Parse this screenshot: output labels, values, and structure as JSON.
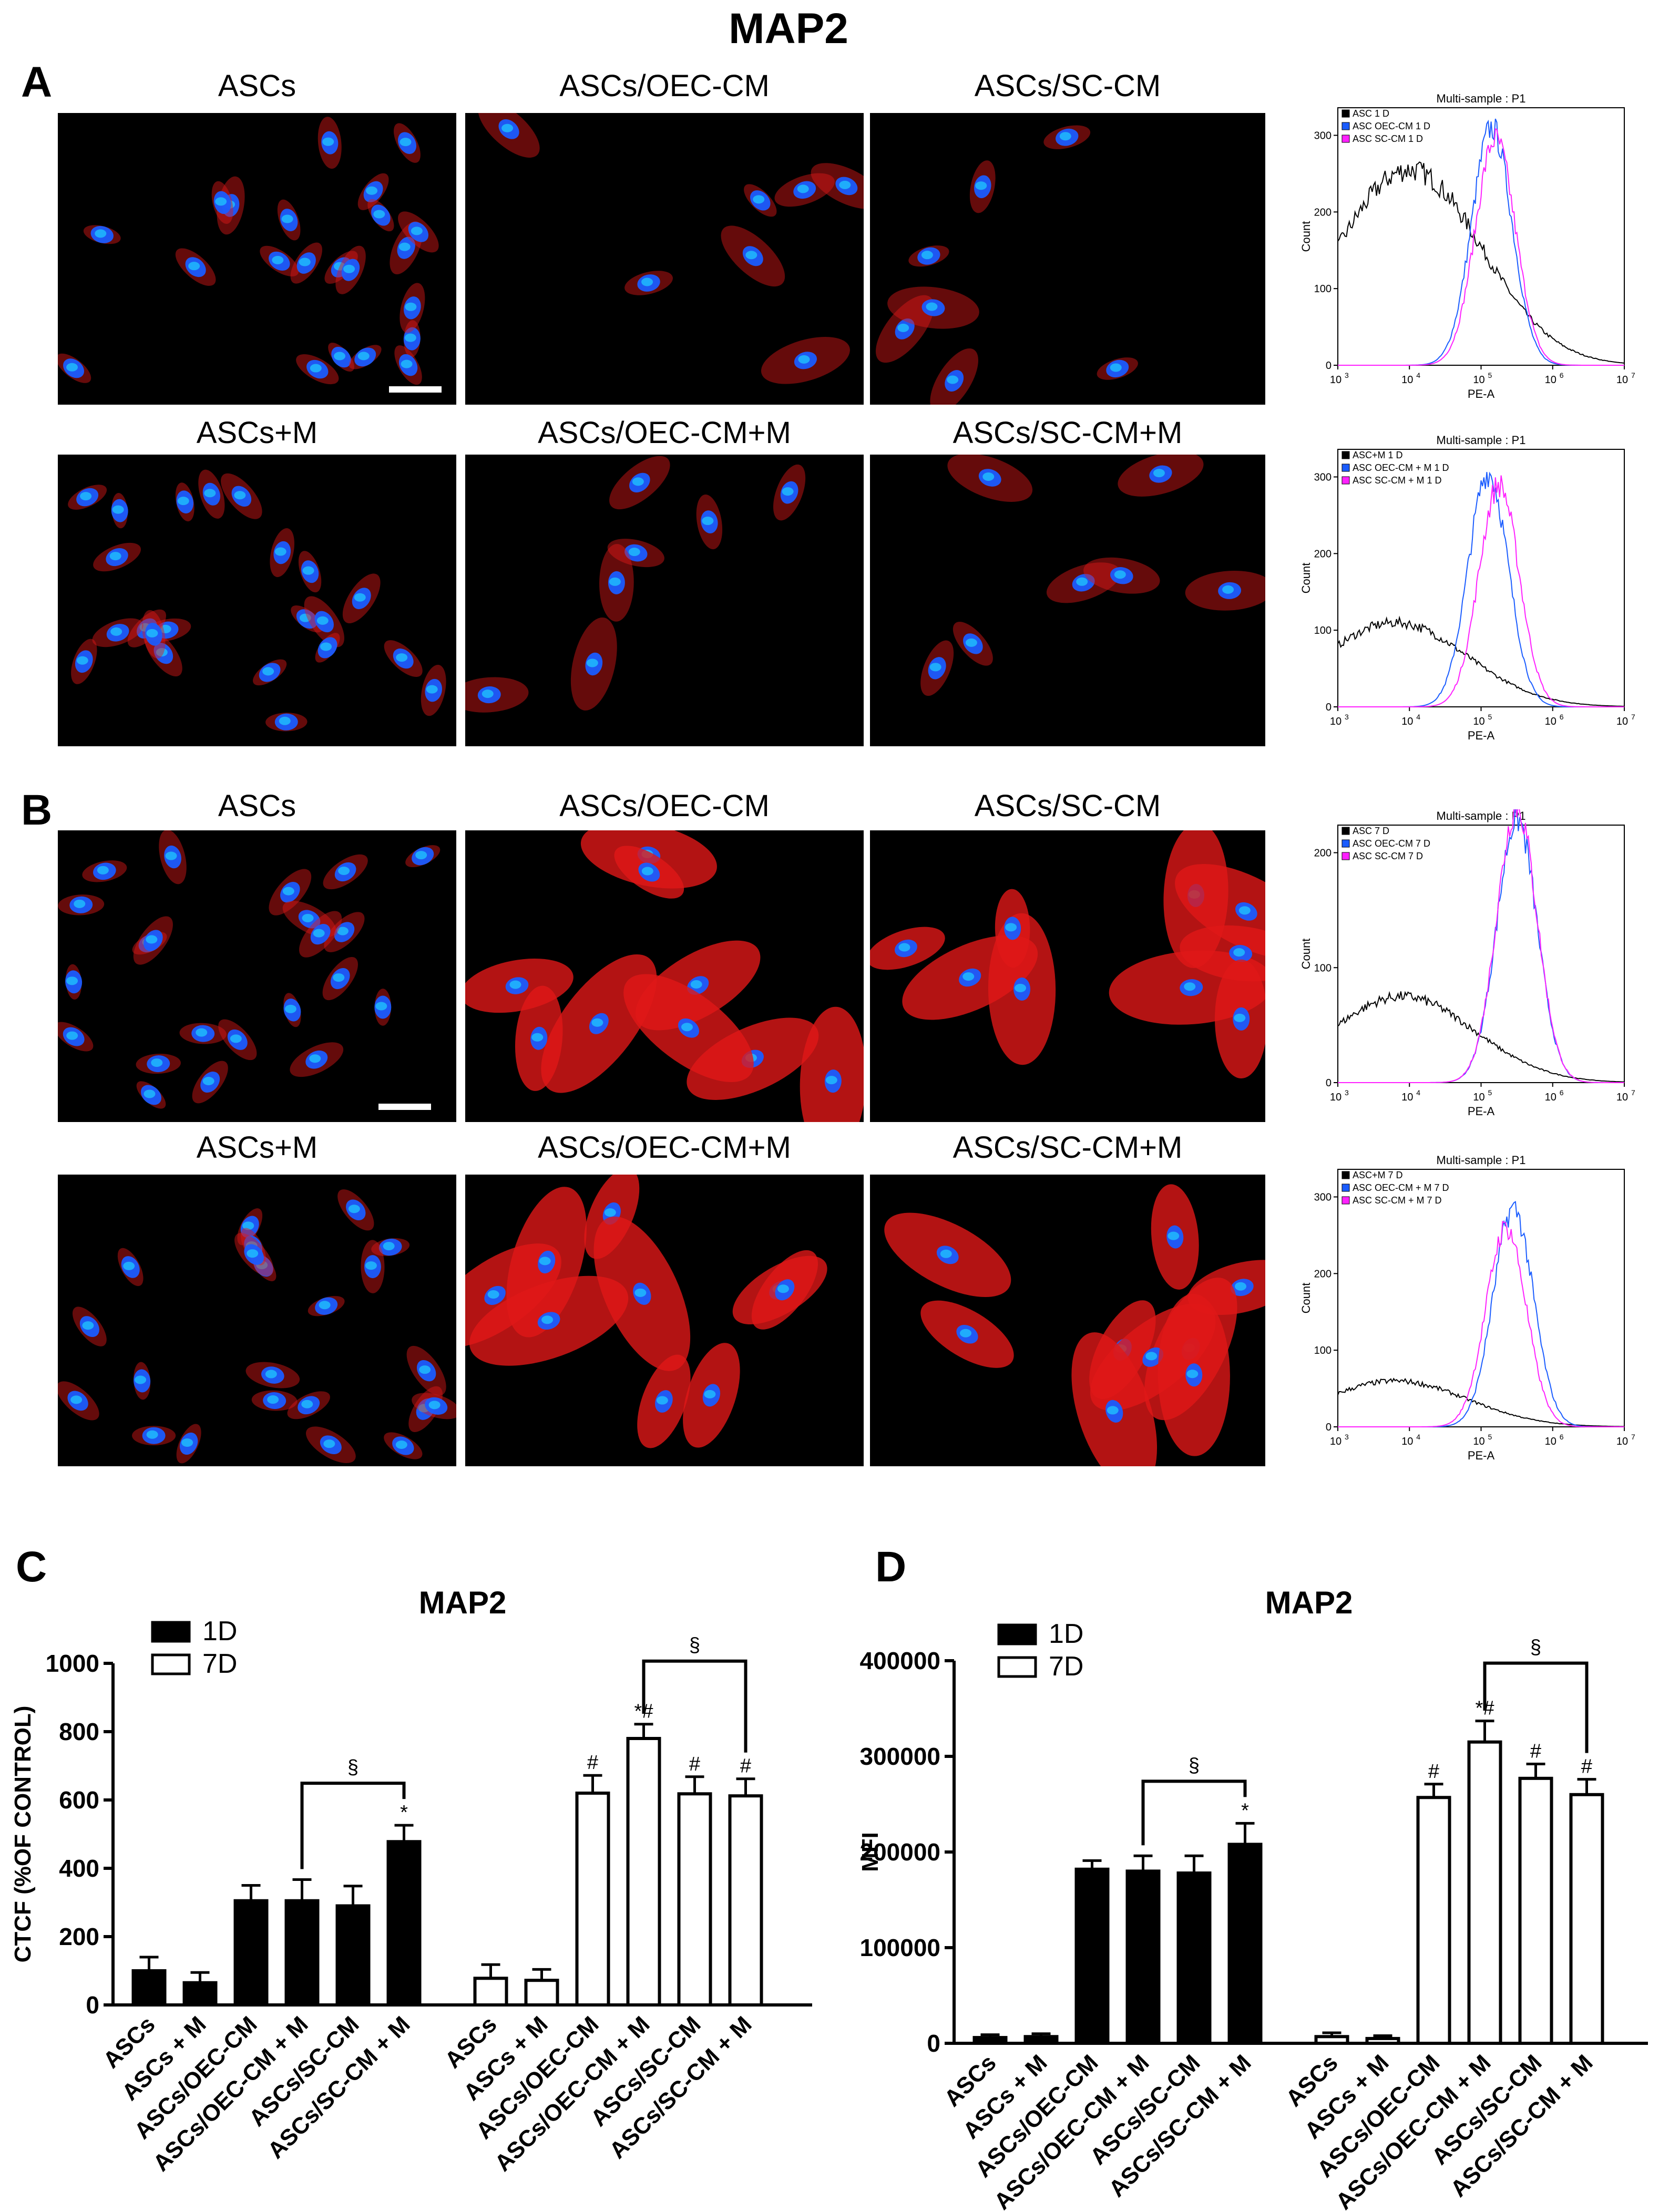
{
  "figure_title": "MAP2",
  "panels": {
    "A": {
      "letter": "A",
      "rows": [
        {
          "labels": [
            "ASCs",
            "ASCs/OEC-CM",
            "ASCs/SC-CM"
          ],
          "flow": {
            "title": "Multi-sample : P1",
            "legend": [
              "ASC 1 D",
              "ASC OEC-CM 1 D",
              "ASC SC-CM 1 D"
            ],
            "ymax": 300,
            "yticks": [
              0,
              100,
              200,
              300
            ],
            "peaks": [
              4.0,
              5.15,
              5.2
            ],
            "heights": [
              255,
              310,
              295
            ]
          }
        },
        {
          "labels": [
            "ASCs+M",
            "ASCs/OEC-CM+M",
            "ASCs/SC-CM+M"
          ],
          "flow": {
            "title": "Multi-sample : P1",
            "legend": [
              "ASC+M 1 D",
              "ASC OEC-CM + M 1 D",
              "ASC SC-CM + M 1 D"
            ],
            "ymax": 300,
            "yticks": [
              0,
              100,
              200,
              300
            ],
            "peaks": [
              3.8,
              5.1,
              5.25
            ],
            "heights": [
              110,
              305,
              290
            ]
          }
        }
      ]
    },
    "B": {
      "letter": "B",
      "rows": [
        {
          "labels": [
            "ASCs",
            "ASCs/OEC-CM",
            "ASCs/SC-CM"
          ],
          "flow": {
            "title": "Multi-sample : P1",
            "legend": [
              "ASC 7 D",
              "ASC OEC-CM 7 D",
              "ASC SC-CM 7 D"
            ],
            "ymax": 200,
            "yticks": [
              0,
              100,
              200
            ],
            "peaks": [
              3.9,
              5.5,
              5.5
            ],
            "heights": [
              75,
              230,
              240
            ]
          }
        },
        {
          "labels": [
            "ASCs+M",
            "ASCs/OEC-CM+M",
            "ASCs/SC-CM+M"
          ],
          "flow": {
            "title": "Multi-sample : P1",
            "legend": [
              "ASC+M 7 D",
              "ASC OEC-CM + M 7 D",
              "ASC SC-CM + M 7 D"
            ],
            "ymax": 300,
            "yticks": [
              0,
              100,
              200,
              300
            ],
            "peaks": [
              3.8,
              5.45,
              5.35
            ],
            "heights": [
              60,
              285,
              260
            ]
          }
        }
      ]
    }
  },
  "flow_axis": {
    "xlabel": "PE-A",
    "ylabel": "Count",
    "xtick_exps": [
      "3",
      "4",
      "5",
      "6",
      "7"
    ],
    "xtick_base": "10"
  },
  "chart_data": [
    {
      "panel": "C",
      "type": "bar",
      "title": "MAP2",
      "ylabel": "CTCF (%OF CONTROL)",
      "ylim": [
        0,
        1000
      ],
      "yticks": [
        0,
        200,
        400,
        600,
        800,
        1000
      ],
      "legend": [
        "1D",
        "7D"
      ],
      "categories": [
        "ASCs",
        "ASCs + M",
        "ASCs/OEC-CM",
        "ASCs/OEC-CM + M",
        "ASCs/SC-CM",
        "ASCs/SC-CM + M"
      ],
      "series": [
        {
          "name": "1D",
          "values": [
            100,
            65,
            305,
            305,
            290,
            478
          ],
          "errors": [
            40,
            30,
            45,
            62,
            58,
            48
          ],
          "marks": [
            "",
            "",
            "",
            "",
            "",
            "*"
          ]
        },
        {
          "name": "7D",
          "values": [
            78,
            72,
            620,
            780,
            618,
            612
          ],
          "errors": [
            40,
            32,
            52,
            42,
            50,
            50
          ],
          "marks": [
            "",
            "",
            "#",
            "*#",
            "#",
            "#"
          ]
        }
      ],
      "brackets": [
        {
          "series": "1D",
          "from": 3,
          "to": 5,
          "label": "§"
        },
        {
          "series": "7D",
          "from": 3,
          "to": 5,
          "label": "§"
        }
      ]
    },
    {
      "panel": "D",
      "type": "bar",
      "title": "MAP2",
      "ylabel": "MFI",
      "ylim": [
        0,
        400000
      ],
      "yticks": [
        0,
        100000,
        200000,
        300000,
        400000
      ],
      "legend": [
        "1D",
        "7D"
      ],
      "categories": [
        "ASCs",
        "ASCs + M",
        "ASCs/OEC-CM",
        "ASCs/OEC-CM + M",
        "ASCs/SC-CM",
        "ASCs/SC-CM + M"
      ],
      "series": [
        {
          "name": "1D",
          "values": [
            6000,
            7000,
            182000,
            180000,
            178000,
            208000
          ],
          "errors": [
            3000,
            3000,
            9000,
            16000,
            18000,
            22000
          ],
          "marks": [
            "",
            "",
            "",
            "",
            "",
            "*"
          ]
        },
        {
          "name": "7D",
          "values": [
            7000,
            5000,
            257000,
            315000,
            277000,
            260000
          ],
          "errors": [
            4000,
            3000,
            14000,
            22000,
            15000,
            16000
          ],
          "marks": [
            "",
            "",
            "#",
            "*#",
            "#",
            "#"
          ]
        }
      ],
      "brackets": [
        {
          "series": "1D",
          "from": 3,
          "to": 5,
          "label": "§"
        },
        {
          "series": "7D",
          "from": 3,
          "to": 5,
          "label": "§"
        }
      ]
    }
  ],
  "colors": {
    "red": "#e01818",
    "blue": "#1a5cff",
    "cyan": "#20d0ff",
    "magenta": "#ff20ff",
    "black": "#000000"
  }
}
